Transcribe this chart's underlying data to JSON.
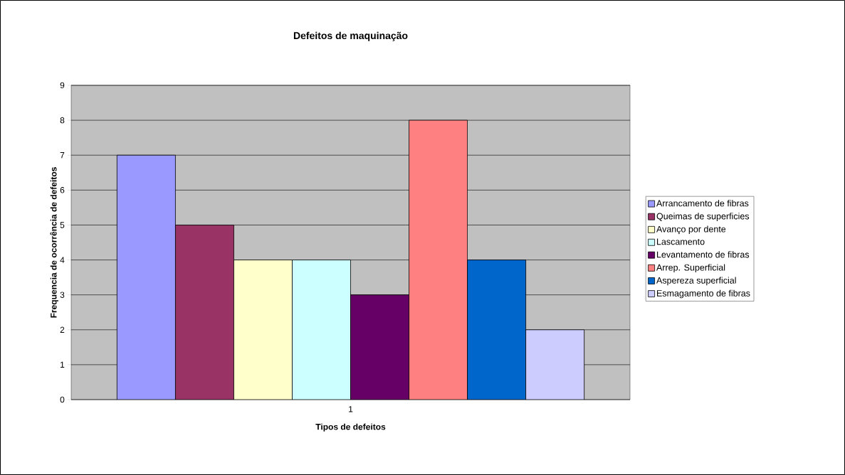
{
  "chart_data": {
    "type": "bar",
    "title": "Defeitos de maquinação",
    "xlabel": "Tipos de defeitos",
    "ylabel": "Frequencia de ocorrência de defeitos",
    "categories": [
      "1"
    ],
    "series": [
      {
        "name": "Arrancamento de fibras",
        "color": "#9999ff",
        "values": [
          7
        ]
      },
      {
        "name": "Queimas de superficies",
        "color": "#993366",
        "values": [
          5
        ]
      },
      {
        "name": "Avanço por dente",
        "color": "#ffffcc",
        "values": [
          4
        ]
      },
      {
        "name": "Lascamento",
        "color": "#ccffff",
        "values": [
          4
        ]
      },
      {
        "name": "Levantamento de fibras",
        "color": "#660066",
        "values": [
          3
        ]
      },
      {
        "name": "Arrep. Superficial",
        "color": "#ff8080",
        "values": [
          8
        ]
      },
      {
        "name": "Aspereza superficial",
        "color": "#0066cc",
        "values": [
          4
        ]
      },
      {
        "name": "Esmagamento de fibras",
        "color": "#ccccff",
        "values": [
          2
        ]
      }
    ],
    "ylim": [
      0,
      9
    ],
    "yticks": [
      0,
      1,
      2,
      3,
      4,
      5,
      6,
      7,
      8,
      9
    ],
    "grid": "y",
    "legend": "right"
  }
}
